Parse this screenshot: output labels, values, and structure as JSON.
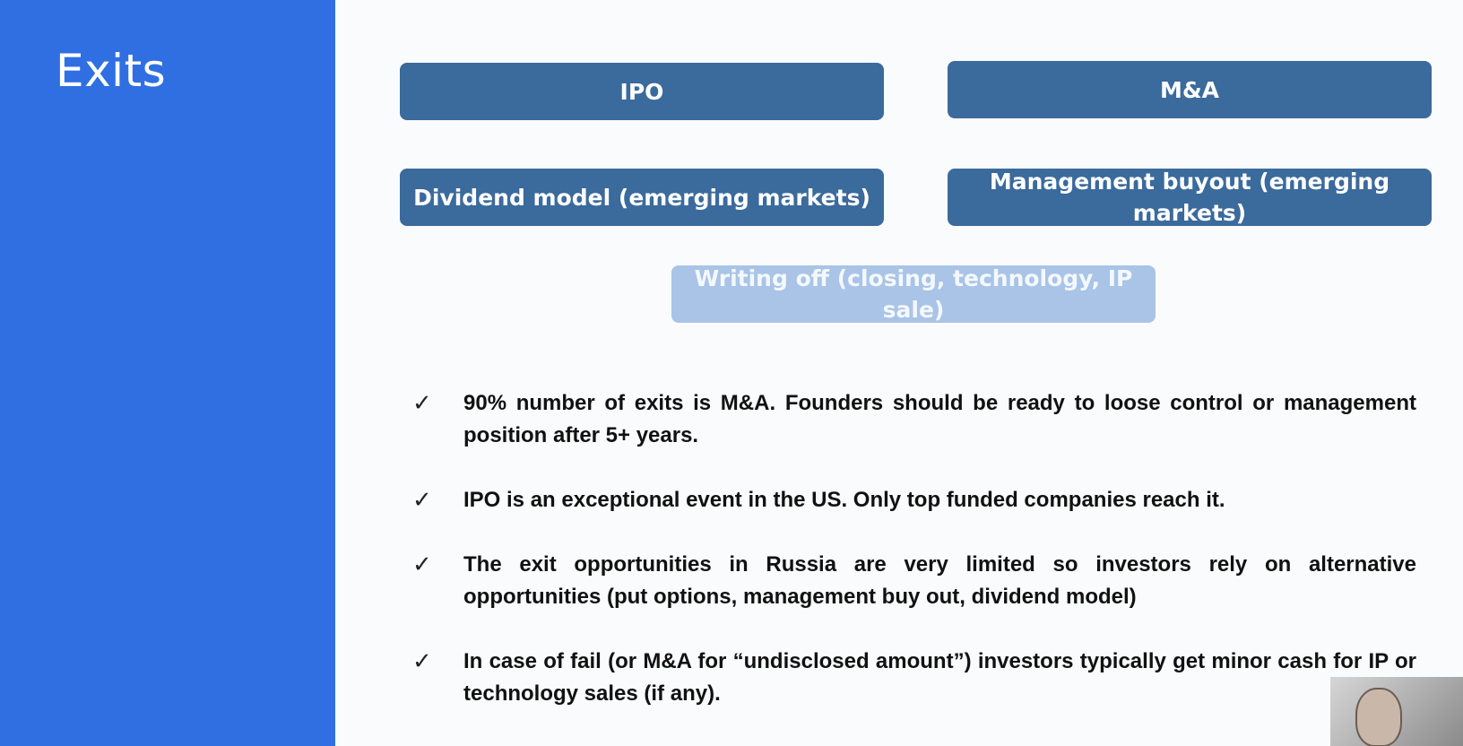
{
  "slide": {
    "title": "Exits",
    "colors": {
      "left_panel": "#2f6fe2",
      "box_dark": "#3b6a9c",
      "box_light": "#a9c4e6"
    }
  },
  "exit_types": {
    "ipo": "IPO",
    "ma": "M&A",
    "dividend": "Dividend model (emerging markets)",
    "mbo": "Management buyout (emerging markets)",
    "writing_off": "Writing off (closing, technology, IP sale)"
  },
  "bullets": {
    "check_symbol": "✓",
    "items": [
      "90% number of exits is M&A. Founders should be ready to loose control or management position after 5+ years.",
      "IPO is an exceptional event in the US. Only top funded companies reach it.",
      "The exit opportunities in Russia are very limited so investors rely on alternative opportunities (put options, management buy out, dividend model)",
      "In case of fail (or M&A for “undisclosed amount”) investors typically get minor cash for IP or technology sales (if any)."
    ]
  },
  "webcam": {
    "icon": "webcam-thumbnail"
  }
}
